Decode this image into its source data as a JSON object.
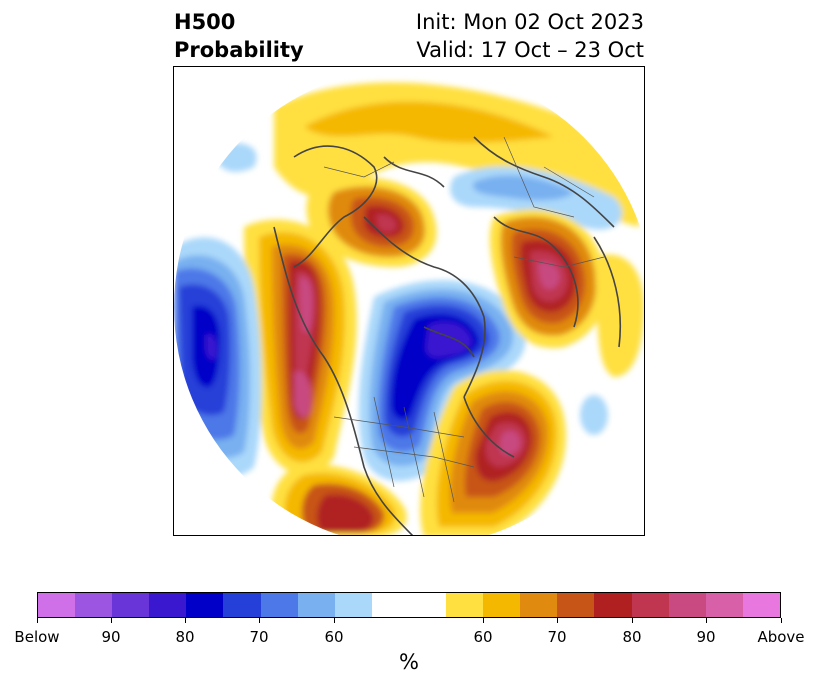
{
  "header": {
    "title_line1": "H500",
    "title_line2": "Probability",
    "init_text": "Init: Mon 02 Oct 2023",
    "valid_text": "Valid: 17 Oct – 23 Oct"
  },
  "colorbar": {
    "unit_label": "%",
    "colors": [
      "#d070e8",
      "#9b55e0",
      "#6a35d8",
      "#3a18d0",
      "#0000c8",
      "#2540d8",
      "#4d78e8",
      "#78b0f0",
      "#aad8fa",
      "#ffffff",
      "#ffffff",
      "#ffe040",
      "#f5b800",
      "#e08a10",
      "#c85518",
      "#b02020",
      "#c03550",
      "#c84a80",
      "#d860a8",
      "#e878e0"
    ],
    "ticks": [
      "Below",
      "90",
      "80",
      "70",
      "60",
      "60",
      "70",
      "80",
      "90",
      "Above"
    ]
  },
  "map": {
    "projection": "polar-stereographic",
    "palette": {
      "below_60": "#aad8fa",
      "below_65": "#78b0f0",
      "below_70": "#4d78e8",
      "below_75": "#2540d8",
      "below_80": "#0000c8",
      "below_85": "#3a18d0",
      "above_55": "#ffe040",
      "above_60": "#f5b800",
      "above_65": "#e08a10",
      "above_70": "#c85518",
      "above_75": "#b02020",
      "above_80": "#c03550",
      "above_85": "#c84a80"
    }
  }
}
